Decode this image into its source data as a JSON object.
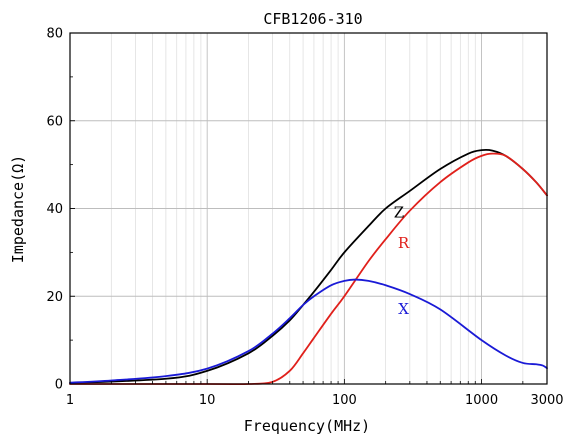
{
  "chart_data": {
    "type": "line",
    "title": "CFB1206-310",
    "xlabel": "Frequency(MHz)",
    "ylabel": "Impedance(Ω)",
    "x_scale": "log",
    "xlim": [
      1,
      3000
    ],
    "ylim": [
      0,
      80
    ],
    "x_ticks": [
      1,
      10,
      100,
      1000,
      3000
    ],
    "x_tick_labels": [
      "1",
      "10",
      "100",
      "1000",
      "3000"
    ],
    "y_ticks": [
      0,
      20,
      40,
      60,
      80
    ],
    "y_tick_labels": [
      "0",
      "20",
      "40",
      "60",
      "80"
    ],
    "grid": true,
    "legend": "inline labels",
    "series": [
      {
        "name": "Z",
        "color": "#000000",
        "label_at": [
          250,
          38
        ],
        "x": [
          1,
          5,
          10,
          20,
          30,
          40,
          50,
          60,
          80,
          100,
          150,
          200,
          300,
          500,
          800,
          1000,
          1200,
          1500,
          2000,
          2500,
          3000
        ],
        "y": [
          0.2,
          1.2,
          3,
          7,
          11,
          14.5,
          18,
          21,
          26,
          30,
          36,
          40,
          44,
          49,
          52.5,
          53.3,
          53.2,
          52,
          49,
          46,
          43
        ]
      },
      {
        "name": "R",
        "color": "#e0201b",
        "label_at": [
          270,
          31
        ],
        "x": [
          1,
          10,
          20,
          30,
          40,
          50,
          60,
          80,
          100,
          150,
          200,
          300,
          500,
          800,
          1000,
          1200,
          1500,
          2000,
          2500,
          3000
        ],
        "y": [
          0,
          0,
          0,
          0.5,
          3,
          7,
          10.5,
          16,
          20,
          28,
          33,
          39.5,
          46,
          50.5,
          52,
          52.5,
          52,
          49,
          46,
          43
        ]
      },
      {
        "name": "X",
        "color": "#1a1ad6",
        "label_at": [
          270,
          16
        ],
        "x": [
          1,
          2,
          5,
          10,
          20,
          30,
          40,
          50,
          60,
          80,
          100,
          120,
          150,
          200,
          300,
          500,
          1000,
          1500,
          2000,
          2500,
          2800,
          3000
        ],
        "y": [
          0.3,
          0.8,
          1.8,
          3.5,
          7.5,
          11.5,
          15,
          18,
          20,
          22.5,
          23.5,
          23.8,
          23.5,
          22.5,
          20.5,
          17,
          10,
          6.5,
          4.8,
          4.5,
          4.2,
          3.6
        ]
      }
    ]
  }
}
